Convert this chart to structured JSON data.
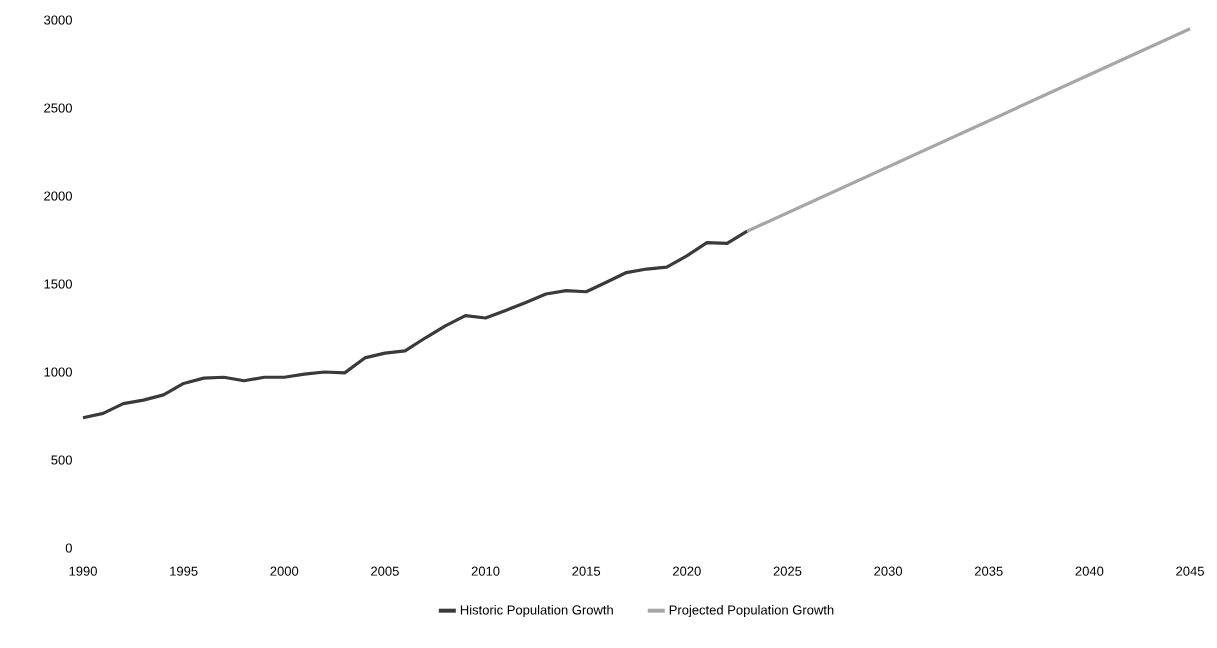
{
  "chart_data": {
    "type": "line",
    "xlim": [
      1990,
      2045
    ],
    "ylim": [
      0,
      3000
    ],
    "xticks": [
      1990,
      1995,
      2000,
      2005,
      2010,
      2015,
      2020,
      2025,
      2030,
      2035,
      2040,
      2045
    ],
    "yticks": [
      0,
      500,
      1000,
      1500,
      2000,
      2500,
      3000
    ],
    "legend": "bottom",
    "marker": "none",
    "line_style": "solid",
    "series": [
      {
        "name": "Historic Population Growth",
        "color": "#3a3a3a",
        "x": [
          1990,
          1991,
          1992,
          1993,
          1994,
          1995,
          1996,
          1997,
          1998,
          1999,
          2000,
          2001,
          2002,
          2003,
          2004,
          2005,
          2006,
          2007,
          2008,
          2009,
          2010,
          2011,
          2012,
          2013,
          2014,
          2015,
          2016,
          2017,
          2018,
          2019,
          2020,
          2021,
          2022,
          2023
        ],
        "values": [
          740,
          765,
          820,
          840,
          870,
          935,
          965,
          970,
          950,
          970,
          970,
          988,
          1000,
          995,
          1080,
          1107,
          1120,
          1193,
          1262,
          1320,
          1307,
          1350,
          1395,
          1443,
          1462,
          1456,
          1510,
          1565,
          1585,
          1596,
          1660,
          1735,
          1731,
          1800
        ]
      },
      {
        "name": "Projected Population Growth",
        "color": "#a6a6a6",
        "x": [
          2023,
          2045
        ],
        "values": [
          1800,
          2950
        ]
      }
    ]
  }
}
